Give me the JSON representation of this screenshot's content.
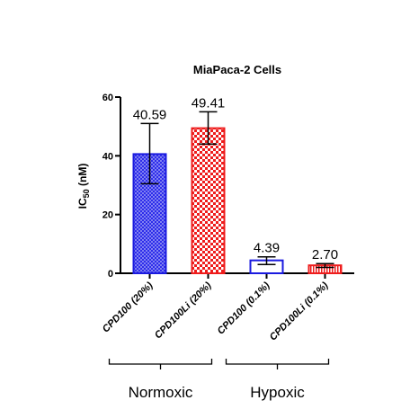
{
  "chart_data": {
    "type": "bar",
    "title": "MiaPaca-2 Cells",
    "ylabel_main": "IC",
    "ylabel_sub": "50",
    "ylabel_unit": " (nM)",
    "ylim": [
      0,
      60
    ],
    "yticks": [
      0,
      20,
      40,
      60
    ],
    "categories": [
      "CPD100 (20%)",
      "CPD100Li (20%)",
      "CPD100 (0.1%)",
      "CPD100Li (0.1%)"
    ],
    "values": [
      40.59,
      49.41,
      4.39,
      2.7
    ],
    "value_labels": [
      "40.59",
      "49.41",
      "4.39",
      "2.70"
    ],
    "error_low": [
      30.5,
      44.0,
      3.0,
      2.0
    ],
    "error_high": [
      51.0,
      55.0,
      5.6,
      3.3
    ],
    "colors": [
      "#1a1adf",
      "#ee1c1c",
      "#1a1adf",
      "#ee1c1c"
    ],
    "fill_style": [
      "dense-pattern",
      "checker-pattern",
      "open",
      "hatched"
    ],
    "groups": [
      {
        "label": "Normoxic",
        "categories": [
          0,
          1
        ]
      },
      {
        "label": "Hypoxic",
        "categories": [
          2,
          3
        ]
      }
    ]
  }
}
